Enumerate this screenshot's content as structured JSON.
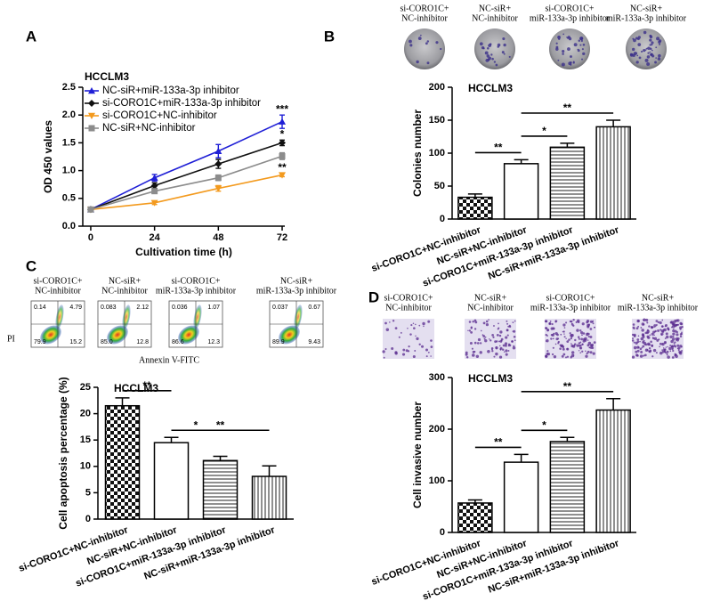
{
  "panel_labels": [
    "A",
    "B",
    "C",
    "D"
  ],
  "chart_data": [
    {
      "type": "line",
      "title": "HCCLM3",
      "xlabel": "Cultivation time (h)",
      "ylabel": "OD 450 values",
      "x": [
        0,
        24,
        48,
        72
      ],
      "xlim": [
        -3,
        73
      ],
      "xticks": [
        0,
        24,
        48,
        72
      ],
      "ylim": [
        0,
        2.5
      ],
      "yticks": [
        {
          "value": 0,
          "label": "0.0"
        },
        0.5,
        {
          "value": 1,
          "label": "1.0"
        },
        1.5,
        {
          "value": 2,
          "label": "2.0"
        },
        2.5
      ],
      "series": [
        {
          "name": "NC-siR+miR-133a-3p inhibitor",
          "color": "#1f1fd6",
          "marker": "triangle-up",
          "values": [
            0.3,
            0.87,
            1.35,
            1.88
          ],
          "errors": [
            0.03,
            0.06,
            0.12,
            0.12
          ],
          "annotation": "***"
        },
        {
          "name": "si-CORO1C+miR-133a-3p inhibitor",
          "color": "#111111",
          "marker": "diamond",
          "values": [
            0.3,
            0.73,
            1.12,
            1.5
          ],
          "errors": [
            0.02,
            0.05,
            0.08,
            0.05
          ],
          "annotation": "*"
        },
        {
          "name": "si-CORO1C+NC-inhibitor",
          "color": "#f39a1e",
          "marker": "triangle-down",
          "values": [
            0.3,
            0.42,
            0.68,
            0.92
          ],
          "errors": [
            0.02,
            0.03,
            0.05,
            0.03
          ],
          "annotation": "**"
        },
        {
          "name": "NC-siR+NC-inhibitor",
          "color": "#8c8c8c",
          "marker": "square",
          "values": [
            0.3,
            0.63,
            0.87,
            1.26
          ],
          "errors": [
            0.02,
            0.04,
            0.05,
            0.06
          ]
        }
      ]
    },
    {
      "type": "bar",
      "title": "HCCLM3",
      "ylabel": "Colonies number",
      "categories": [
        "si-CORO1C+NC-inhibitor",
        "NC-siR+NC-inhibitor",
        "si-CORO1C+miR-133a-3p inhibitor",
        "NC-siR+miR-133a-3p inhibitor"
      ],
      "values": [
        33,
        84,
        109,
        140
      ],
      "errors": [
        5,
        6,
        6,
        10
      ],
      "fills": [
        "checker",
        "white",
        "hlines",
        "vlines"
      ],
      "ylim": [
        0,
        200
      ],
      "yticks": [
        0,
        50,
        100,
        150,
        200
      ],
      "brackets": [
        {
          "label": "**",
          "between": [
            0,
            1
          ]
        },
        {
          "label": "*",
          "between": [
            1,
            2
          ]
        },
        {
          "label": "**",
          "between": [
            1,
            3
          ]
        }
      ]
    },
    {
      "type": "bar",
      "title": "HCCLM3",
      "ylabel": "Cell apoptosis percentage (%)",
      "categories": [
        "si-CORO1C+NC-inhibitor",
        "NC-siR+NC-inhibitor",
        "si-CORO1C+miR-133a-3p inhibitor",
        "NC-siR+miR-133a-3p inhibitor"
      ],
      "values": [
        21.5,
        14.5,
        11.1,
        8.1
      ],
      "errors": [
        1.5,
        1.0,
        0.8,
        2.0
      ],
      "fills": [
        "checker",
        "white",
        "hlines",
        "vlines"
      ],
      "ylim": [
        0,
        25
      ],
      "yticks": [
        0,
        5,
        10,
        15,
        20,
        25
      ],
      "brackets": [
        {
          "label": "**",
          "between": [
            0,
            1
          ]
        },
        {
          "label": "*",
          "between": [
            1,
            2
          ]
        },
        {
          "label": "**",
          "between": [
            1,
            3
          ]
        }
      ]
    },
    {
      "type": "bar",
      "title": "HCCLM3",
      "ylabel": "Cell invasive number",
      "categories": [
        "si-CORO1C+NC-inhibitor",
        "NC-siR+NC-inhibitor",
        "si-CORO1C+miR-133a-3p inhibitor",
        "NC-siR+miR-133a-3p inhibitor"
      ],
      "values": [
        57,
        136,
        176,
        237
      ],
      "errors": [
        6,
        15,
        8,
        22
      ],
      "fills": [
        "checker",
        "white",
        "hlines",
        "vlines"
      ],
      "ylim": [
        0,
        300
      ],
      "yticks": [
        0,
        100,
        200,
        300
      ],
      "brackets": [
        {
          "label": "**",
          "between": [
            0,
            1
          ]
        },
        {
          "label": "*",
          "between": [
            1,
            2
          ]
        },
        {
          "label": "**",
          "between": [
            1,
            3
          ]
        }
      ]
    }
  ],
  "colony_images": [
    {
      "label": [
        "si-CORO1C+",
        "NC-inhibitor"
      ]
    },
    {
      "label": [
        "NC-siR+",
        "NC-inhibitor"
      ]
    },
    {
      "label": [
        "si-CORO1C+",
        "miR-133a-3p inhibitor"
      ]
    },
    {
      "label": [
        "NC-siR+",
        "miR-133a-3p inhibitor"
      ]
    }
  ],
  "flow_cytometry": {
    "y_axis": "PI",
    "x_axis": "Annexin V-FITC",
    "plots": [
      {
        "label": [
          "si-CORO1C+",
          "NC-inhibitor"
        ],
        "quadrants": [
          "0.14",
          "4.79",
          "79.9",
          "15.2"
        ]
      },
      {
        "label": [
          "NC-siR+",
          "NC-inhibitor"
        ],
        "quadrants": [
          "0.083",
          "2.12",
          "85.0",
          "12.8"
        ]
      },
      {
        "label": [
          "si-CORO1C+",
          "miR-133a-3p inhibitor"
        ],
        "quadrants": [
          "0.036",
          "1.07",
          "86.6",
          "12.3"
        ]
      },
      {
        "label": [
          "NC-siR+",
          "miR-133a-3p inhibitor"
        ],
        "quadrants": [
          "0.037",
          "0.67",
          "89.9",
          "9.43"
        ]
      }
    ]
  },
  "invasion_images": [
    {
      "label": [
        "si-CORO1C+",
        "NC-inhibitor"
      ]
    },
    {
      "label": [
        "NC-siR+",
        "NC-inhibitor"
      ]
    },
    {
      "label": [
        "si-CORO1C+",
        "miR-133a-3p inhibitor"
      ]
    },
    {
      "label": [
        "NC-siR+",
        "miR-133a-3p inhibitor"
      ]
    }
  ]
}
